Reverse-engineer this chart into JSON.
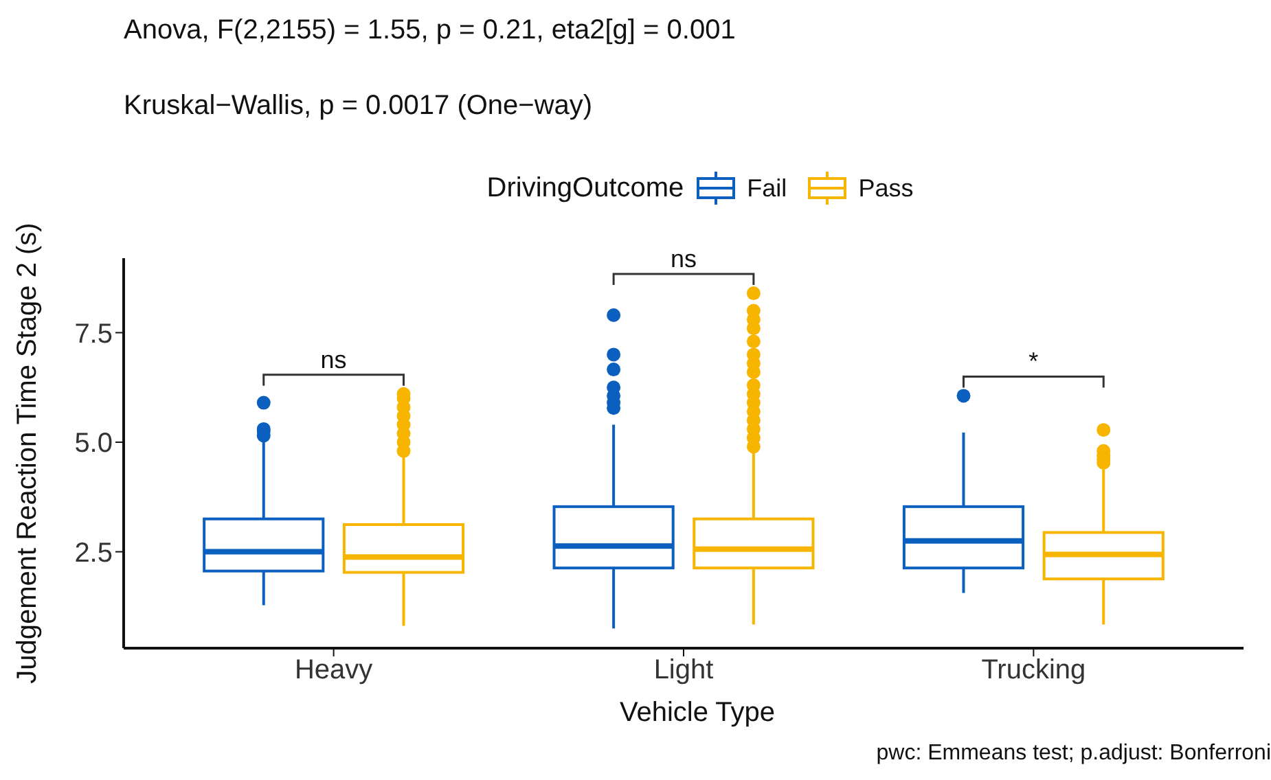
{
  "chart_data": {
    "type": "box",
    "title": "Anova, F(2,2155) = 1.55, p = 0.21, eta2[g] = 0.001",
    "subtitle": "Kruskal−Wallis, p = 0.0017 (One−way)",
    "xlabel": "Vehicle Type",
    "ylabel": "Judgement Reaction Time Stage 2 (s)",
    "legend_title": "DrivingOutcome",
    "legend": "top",
    "grid": false,
    "categories": [
      "Heavy",
      "Light",
      "Trucking"
    ],
    "ylim": [
      0.3,
      9.2
    ],
    "yticks": [
      {
        "value": 2.5,
        "label": "2.5"
      },
      {
        "value": 5,
        "label": "5.0"
      },
      {
        "value": 7.5,
        "label": "7.5"
      }
    ],
    "series": [
      {
        "name": "Fail",
        "color": "#0a5fbf",
        "boxes": [
          {
            "low": 1.28,
            "q1": 2.06,
            "median": 2.5,
            "q3": 3.25,
            "high": 5.0,
            "outliers": [
              5.15,
              5.25,
              5.3,
              5.9
            ]
          },
          {
            "low": 0.75,
            "q1": 2.13,
            "median": 2.63,
            "q3": 3.53,
            "high": 5.4,
            "outliers": [
              5.78,
              5.9,
              6.06,
              6.25,
              6.66,
              7.0,
              7.9
            ]
          },
          {
            "low": 1.56,
            "q1": 2.13,
            "median": 2.75,
            "q3": 3.53,
            "high": 5.22,
            "outliers": [
              6.06
            ]
          }
        ]
      },
      {
        "name": "Pass",
        "color": "#f7b500",
        "boxes": [
          {
            "low": 0.81,
            "q1": 2.03,
            "median": 2.38,
            "q3": 3.12,
            "high": 4.7,
            "outliers": [
              4.8,
              5.0,
              5.2,
              5.4,
              5.6,
              5.8,
              6.0,
              6.1
            ]
          },
          {
            "low": 0.84,
            "q1": 2.13,
            "median": 2.56,
            "q3": 3.25,
            "high": 4.84,
            "outliers": [
              4.9,
              5.1,
              5.3,
              5.5,
              5.7,
              5.9,
              6.1,
              6.3,
              6.6,
              6.8,
              7.0,
              7.3,
              7.6,
              7.8,
              8.0,
              8.4
            ]
          },
          {
            "low": 0.84,
            "q1": 1.88,
            "median": 2.44,
            "q3": 2.94,
            "high": 4.38,
            "outliers": [
              4.53,
              4.6,
              4.7,
              4.8,
              5.28
            ]
          }
        ]
      }
    ],
    "annotations": [
      "ns",
      "ns",
      "*",
      "pwc: Emmeans test; p.adjust: Bonferroni"
    ]
  }
}
